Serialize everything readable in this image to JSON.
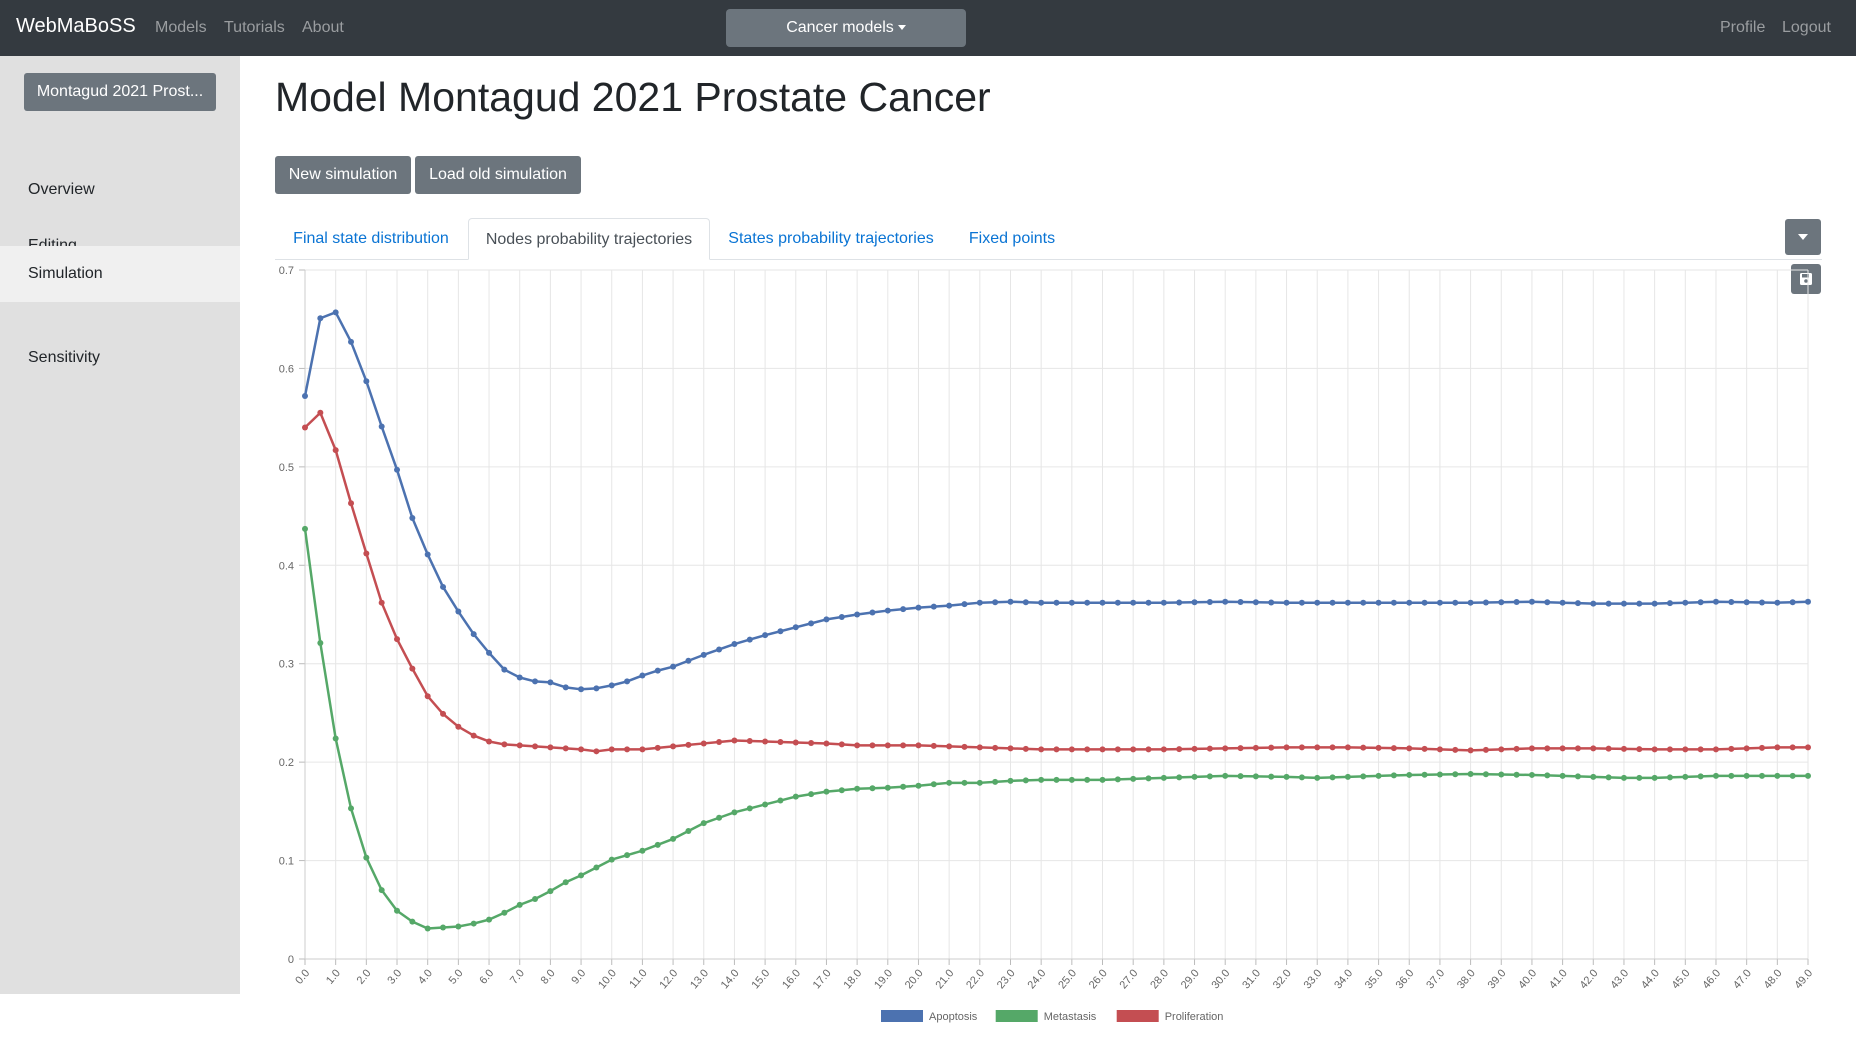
{
  "navbar": {
    "brand": "WebMaBoSS",
    "links": [
      "Models",
      "Tutorials",
      "About"
    ],
    "dropdown_label": "Cancer models",
    "right_links": [
      "Profile",
      "Logout"
    ]
  },
  "sidebar": {
    "model_button": "Montagud 2021 Prost...",
    "items": [
      {
        "label": "Overview",
        "active": false
      },
      {
        "label": "Editing",
        "active": false
      },
      {
        "label": "Simulation",
        "active": true
      },
      {
        "label": "Sensitivity",
        "active": false
      }
    ]
  },
  "main": {
    "title": "Model Montagud 2021 Prostate Cancer",
    "buttons": [
      "New simulation",
      "Load old simulation"
    ],
    "tabs": [
      {
        "label": "Final state distribution",
        "active": false
      },
      {
        "label": "Nodes probability trajectories",
        "active": true
      },
      {
        "label": "States probability trajectories",
        "active": false
      },
      {
        "label": "Fixed points",
        "active": false
      }
    ],
    "icons": {
      "dropdown": "caret-down-icon",
      "save": "floppy-disk-icon"
    }
  },
  "colors": {
    "navbar": "#343a40",
    "sidebar": "#e0e0e0",
    "button": "#6c757d",
    "link": "#0a74d4",
    "apoptosis": "#4c72b0",
    "metastasis": "#55a868",
    "proliferation": "#c44e52"
  },
  "chart_data": {
    "type": "line",
    "x_start": 0,
    "x_step": 0.5,
    "x_end": 49,
    "xtick_labels": [
      "0.0",
      "1.0",
      "2.0",
      "3.0",
      "4.0",
      "5.0",
      "6.0",
      "7.0",
      "8.0",
      "9.0",
      "10.0",
      "11.0",
      "12.0",
      "13.0",
      "14.0",
      "15.0",
      "16.0",
      "17.0",
      "18.0",
      "19.0",
      "20.0",
      "21.0",
      "22.0",
      "23.0",
      "24.0",
      "25.0",
      "26.0",
      "27.0",
      "28.0",
      "29.0",
      "30.0",
      "31.0",
      "32.0",
      "33.0",
      "34.0",
      "35.0",
      "36.0",
      "37.0",
      "38.0",
      "39.0",
      "40.0",
      "41.0",
      "42.0",
      "43.0",
      "44.0",
      "45.0",
      "46.0",
      "47.0",
      "48.0",
      "49.0"
    ],
    "ytick_labels": [
      "0",
      "0.1",
      "0.2",
      "0.3",
      "0.4",
      "0.5",
      "0.6",
      "0.7"
    ],
    "ylim": [
      0,
      0.7
    ],
    "grid": true,
    "legend_position": "bottom-center",
    "series": [
      {
        "name": "Apoptosis",
        "color": "#4c72b0",
        "anchors": [
          [
            0,
            0.572
          ],
          [
            0.5,
            0.651
          ],
          [
            1,
            0.657
          ],
          [
            1.5,
            0.627
          ],
          [
            2,
            0.587
          ],
          [
            2.5,
            0.541
          ],
          [
            3,
            0.497
          ],
          [
            3.5,
            0.448
          ],
          [
            4,
            0.411
          ],
          [
            4.5,
            0.378
          ],
          [
            5,
            0.353
          ],
          [
            5.5,
            0.33
          ],
          [
            6,
            0.311
          ],
          [
            6.5,
            0.294
          ],
          [
            7,
            0.286
          ],
          [
            7.5,
            0.282
          ],
          [
            8,
            0.281
          ],
          [
            8.5,
            0.276
          ],
          [
            9,
            0.274
          ],
          [
            9.5,
            0.275
          ],
          [
            10,
            0.278
          ],
          [
            10.5,
            0.282
          ],
          [
            11,
            0.288
          ],
          [
            11.5,
            0.293
          ],
          [
            12,
            0.297
          ],
          [
            13,
            0.309
          ],
          [
            14,
            0.32
          ],
          [
            15,
            0.329
          ],
          [
            16,
            0.337
          ],
          [
            17,
            0.345
          ],
          [
            18,
            0.35
          ],
          [
            19,
            0.354
          ],
          [
            20,
            0.357
          ],
          [
            21,
            0.359
          ],
          [
            22,
            0.362
          ],
          [
            23,
            0.363
          ],
          [
            24,
            0.362
          ],
          [
            26,
            0.362
          ],
          [
            28,
            0.362
          ],
          [
            30,
            0.363
          ],
          [
            32,
            0.362
          ],
          [
            34,
            0.362
          ],
          [
            36,
            0.362
          ],
          [
            38,
            0.362
          ],
          [
            40,
            0.363
          ],
          [
            42,
            0.361
          ],
          [
            43,
            0.361
          ],
          [
            44,
            0.361
          ],
          [
            46,
            0.363
          ],
          [
            48,
            0.362
          ],
          [
            49,
            0.363
          ]
        ]
      },
      {
        "name": "Metastasis",
        "color": "#55a868",
        "anchors": [
          [
            0,
            0.437
          ],
          [
            0.5,
            0.321
          ],
          [
            1,
            0.224
          ],
          [
            1.5,
            0.153
          ],
          [
            2,
            0.103
          ],
          [
            2.5,
            0.07
          ],
          [
            3,
            0.049
          ],
          [
            3.5,
            0.038
          ],
          [
            4,
            0.031
          ],
          [
            4.5,
            0.032
          ],
          [
            5,
            0.033
          ],
          [
            5.5,
            0.036
          ],
          [
            6,
            0.04
          ],
          [
            6.5,
            0.047
          ],
          [
            7,
            0.055
          ],
          [
            7.5,
            0.061
          ],
          [
            8,
            0.069
          ],
          [
            8.5,
            0.078
          ],
          [
            9,
            0.085
          ],
          [
            9.5,
            0.093
          ],
          [
            10,
            0.101
          ],
          [
            11,
            0.11
          ],
          [
            12,
            0.122
          ],
          [
            13,
            0.138
          ],
          [
            14,
            0.149
          ],
          [
            15,
            0.157
          ],
          [
            16,
            0.165
          ],
          [
            17,
            0.17
          ],
          [
            18,
            0.173
          ],
          [
            19,
            0.174
          ],
          [
            20,
            0.176
          ],
          [
            21,
            0.179
          ],
          [
            22,
            0.179
          ],
          [
            23,
            0.181
          ],
          [
            24,
            0.182
          ],
          [
            26,
            0.182
          ],
          [
            28,
            0.184
          ],
          [
            30,
            0.186
          ],
          [
            32,
            0.185
          ],
          [
            33,
            0.184
          ],
          [
            34,
            0.185
          ],
          [
            36,
            0.187
          ],
          [
            38,
            0.188
          ],
          [
            40,
            0.187
          ],
          [
            42,
            0.185
          ],
          [
            43,
            0.184
          ],
          [
            44,
            0.184
          ],
          [
            46,
            0.186
          ],
          [
            48,
            0.186
          ],
          [
            49,
            0.186
          ]
        ]
      },
      {
        "name": "Proliferation",
        "color": "#c44e52",
        "anchors": [
          [
            0,
            0.54
          ],
          [
            0.5,
            0.555
          ],
          [
            1,
            0.517
          ],
          [
            1.5,
            0.463
          ],
          [
            2,
            0.412
          ],
          [
            2.5,
            0.362
          ],
          [
            3,
            0.325
          ],
          [
            3.5,
            0.295
          ],
          [
            4,
            0.267
          ],
          [
            4.5,
            0.249
          ],
          [
            5,
            0.236
          ],
          [
            5.5,
            0.227
          ],
          [
            6,
            0.221
          ],
          [
            6.5,
            0.218
          ],
          [
            7,
            0.217
          ],
          [
            8,
            0.215
          ],
          [
            9,
            0.213
          ],
          [
            9.5,
            0.211
          ],
          [
            10,
            0.213
          ],
          [
            11,
            0.213
          ],
          [
            12,
            0.216
          ],
          [
            13,
            0.219
          ],
          [
            14,
            0.222
          ],
          [
            15,
            0.221
          ],
          [
            16,
            0.22
          ],
          [
            17,
            0.219
          ],
          [
            18,
            0.217
          ],
          [
            20,
            0.217
          ],
          [
            22,
            0.215
          ],
          [
            24,
            0.213
          ],
          [
            26,
            0.213
          ],
          [
            28,
            0.213
          ],
          [
            30,
            0.214
          ],
          [
            32,
            0.215
          ],
          [
            33,
            0.215
          ],
          [
            34,
            0.215
          ],
          [
            36,
            0.214
          ],
          [
            38,
            0.212
          ],
          [
            40,
            0.214
          ],
          [
            42,
            0.214
          ],
          [
            44,
            0.213
          ],
          [
            46,
            0.213
          ],
          [
            47,
            0.214
          ],
          [
            48,
            0.215
          ],
          [
            49,
            0.215
          ]
        ]
      }
    ]
  }
}
